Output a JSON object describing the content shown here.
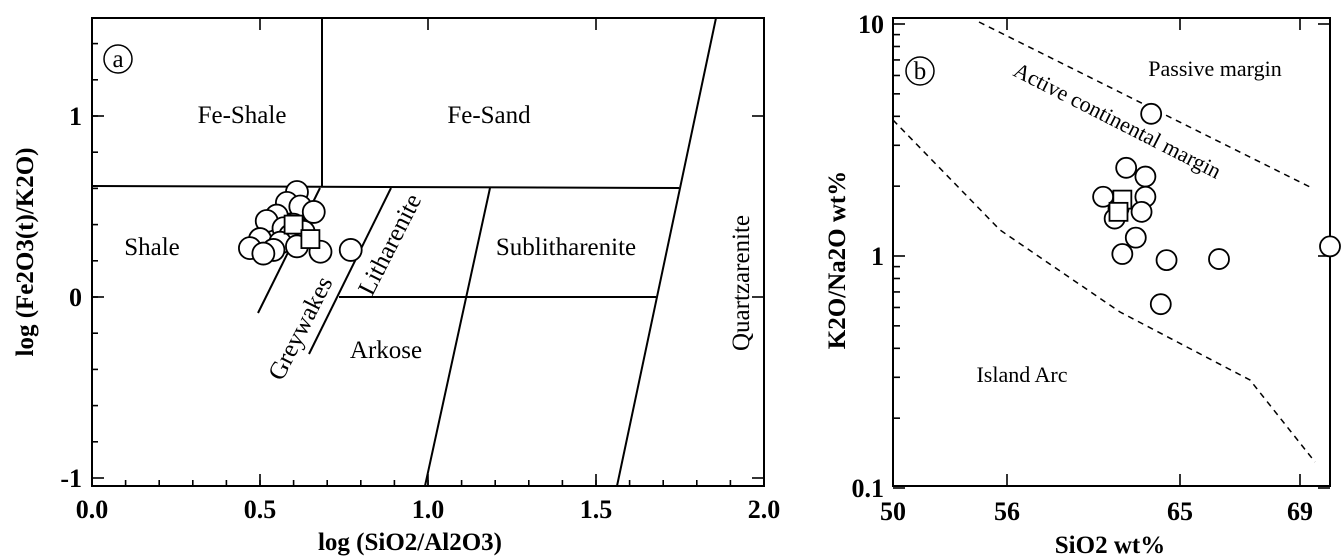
{
  "chart_data": [
    {
      "type": "scatter",
      "panel_label": "a",
      "xlabel": "log (SiO2/Al2O3)",
      "ylabel": "log (Fe2O3(t)/K2O)",
      "xlim": [
        0.0,
        2.0
      ],
      "ylim": [
        -1,
        1.5
      ],
      "x_ticks": [
        "0.0",
        "0.5",
        "1.0",
        "1.5",
        "2.0"
      ],
      "y_ticks": [
        "-1",
        "0",
        "1"
      ],
      "fields": [
        "Fe-Shale",
        "Fe-Sand",
        "Shale",
        "Greywakes",
        "Litharenite",
        "Sublitharenite",
        "Arkose",
        "Quartzarenite"
      ],
      "series": [
        {
          "marker": "circle",
          "points": [
            [
              0.61,
              0.58
            ],
            [
              0.58,
              0.52
            ],
            [
              0.62,
              0.5
            ],
            [
              0.55,
              0.45
            ],
            [
              0.66,
              0.47
            ],
            [
              0.52,
              0.42
            ],
            [
              0.6,
              0.4
            ],
            [
              0.57,
              0.38
            ],
            [
              0.63,
              0.36
            ],
            [
              0.59,
              0.34
            ],
            [
              0.5,
              0.32
            ],
            [
              0.56,
              0.3
            ],
            [
              0.47,
              0.27
            ],
            [
              0.54,
              0.26
            ],
            [
              0.61,
              0.28
            ],
            [
              0.51,
              0.24
            ],
            [
              0.68,
              0.25
            ],
            [
              0.77,
              0.26
            ]
          ]
        },
        {
          "marker": "square",
          "points": [
            [
              0.6,
              0.4
            ],
            [
              0.65,
              0.32
            ]
          ]
        }
      ]
    },
    {
      "type": "scatter",
      "panel_label": "b",
      "xlabel": "SiO2 wt%",
      "ylabel": "K2O/Na2O wt%",
      "x_ticks": [
        "50",
        "56",
        "65",
        "69"
      ],
      "y_ticks": [
        "0.1",
        "1",
        "10"
      ],
      "y_scale": "log",
      "ylim": [
        0.1,
        10
      ],
      "fields": [
        "Passive margin",
        "Active continental margin",
        "Island Arc"
      ],
      "series": [
        {
          "marker": "circle",
          "points": [
            [
              63.5,
              4.1
            ],
            [
              62.2,
              2.4
            ],
            [
              63.2,
              2.2
            ],
            [
              61.0,
              1.8
            ],
            [
              63.2,
              1.8
            ],
            [
              61.8,
              1.6
            ],
            [
              63.0,
              1.55
            ],
            [
              61.6,
              1.45
            ],
            [
              62.7,
              1.2
            ],
            [
              62.0,
              1.02
            ],
            [
              64.3,
              0.96
            ],
            [
              66.3,
              0.97
            ],
            [
              70.0,
              1.1
            ],
            [
              64.0,
              0.62
            ]
          ]
        },
        {
          "marker": "square",
          "points": [
            [
              62.0,
              1.75
            ],
            [
              61.8,
              1.55
            ]
          ]
        }
      ]
    }
  ]
}
